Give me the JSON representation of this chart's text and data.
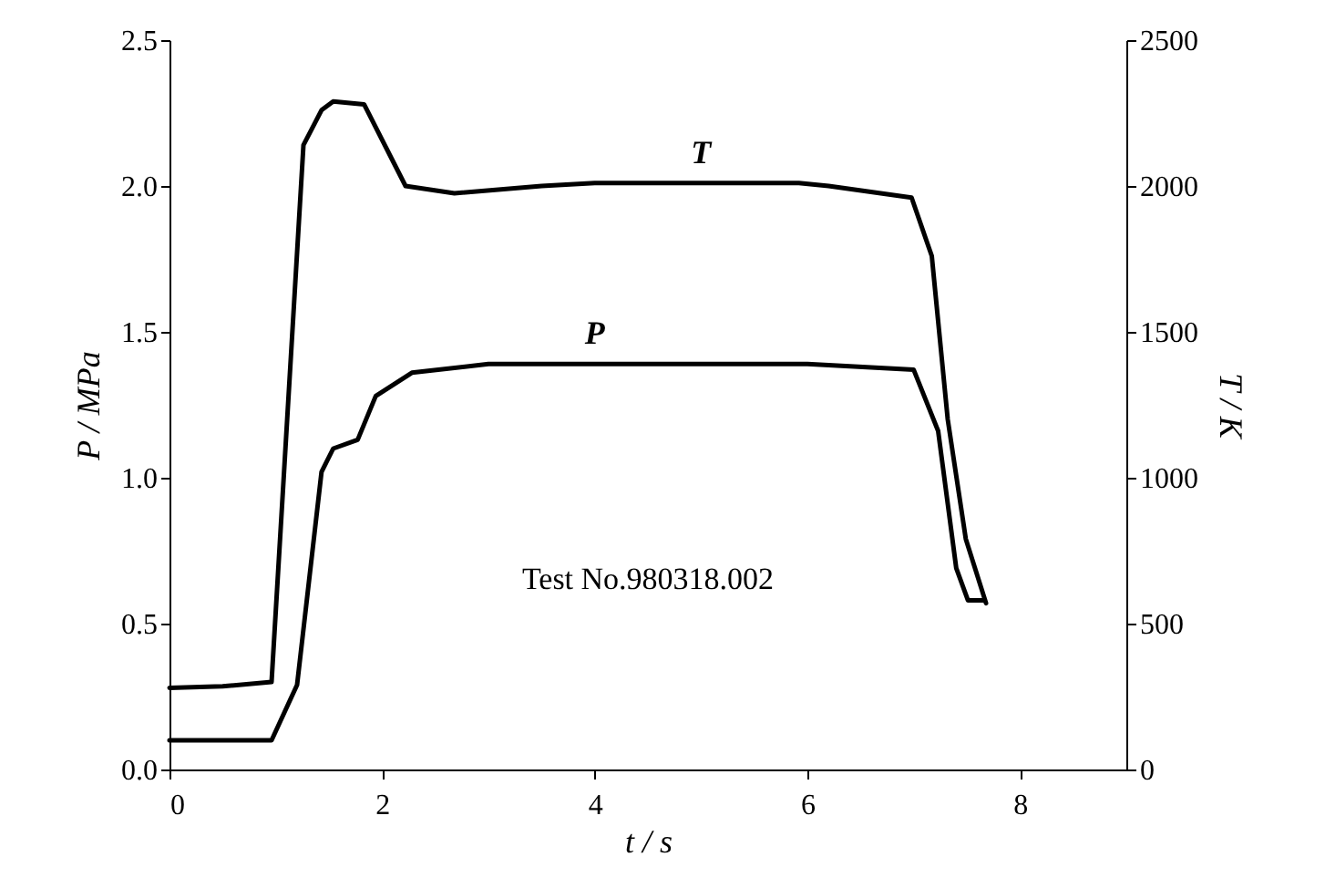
{
  "chart_data": {
    "type": "line",
    "xlabel": "t / s",
    "ylabel": "P / MPa",
    "y2label": "T / K",
    "annotations": [
      "Test No.980318.002"
    ],
    "xlim": [
      0,
      9
    ],
    "xticks": [
      0,
      2,
      4,
      6,
      8
    ],
    "ylim": [
      0,
      2.5
    ],
    "yticks": [
      {
        "value": 0,
        "label": "0.0"
      },
      {
        "value": 0.5,
        "label": "0.5"
      },
      {
        "value": 1,
        "label": "1.0"
      },
      {
        "value": 1.5,
        "label": "1.5"
      },
      {
        "value": 2,
        "label": "2.0"
      },
      {
        "value": 2.5,
        "label": "2.5"
      }
    ],
    "y2lim": [
      0,
      2500
    ],
    "y2ticks": [
      0,
      500,
      1000,
      1500,
      2000,
      2500
    ],
    "grid": false,
    "legend": false,
    "line_style": "solid",
    "series": [
      {
        "name": "T",
        "color": "#000000",
        "axis": "y2",
        "x": [
          0,
          0.5,
          0.96,
          1.26,
          1.43,
          1.54,
          1.83,
          2.22,
          2.68,
          3.5,
          4,
          5,
          5.92,
          6.2,
          6.98,
          7.17,
          7.32,
          7.49,
          7.68
        ],
        "values": [
          280,
          285,
          300,
          2140,
          2260,
          2290,
          2280,
          2000,
          1975,
          2000,
          2010,
          2010,
          2010,
          2000,
          1960,
          1760,
          1200,
          790,
          570
        ]
      },
      {
        "name": "P",
        "color": "#000000",
        "x": [
          0,
          0.5,
          0.96,
          1.2,
          1.43,
          1.54,
          1.77,
          1.94,
          2.28,
          3,
          4,
          5,
          6,
          7,
          7.23,
          7.4,
          7.51,
          7.65
        ],
        "values": [
          0.1,
          0.1,
          0.1,
          0.29,
          1.02,
          1.1,
          1.13,
          1.28,
          1.36,
          1.39,
          1.39,
          1.39,
          1.39,
          1.37,
          1.16,
          0.69,
          0.58,
          0.58
        ]
      }
    ]
  }
}
